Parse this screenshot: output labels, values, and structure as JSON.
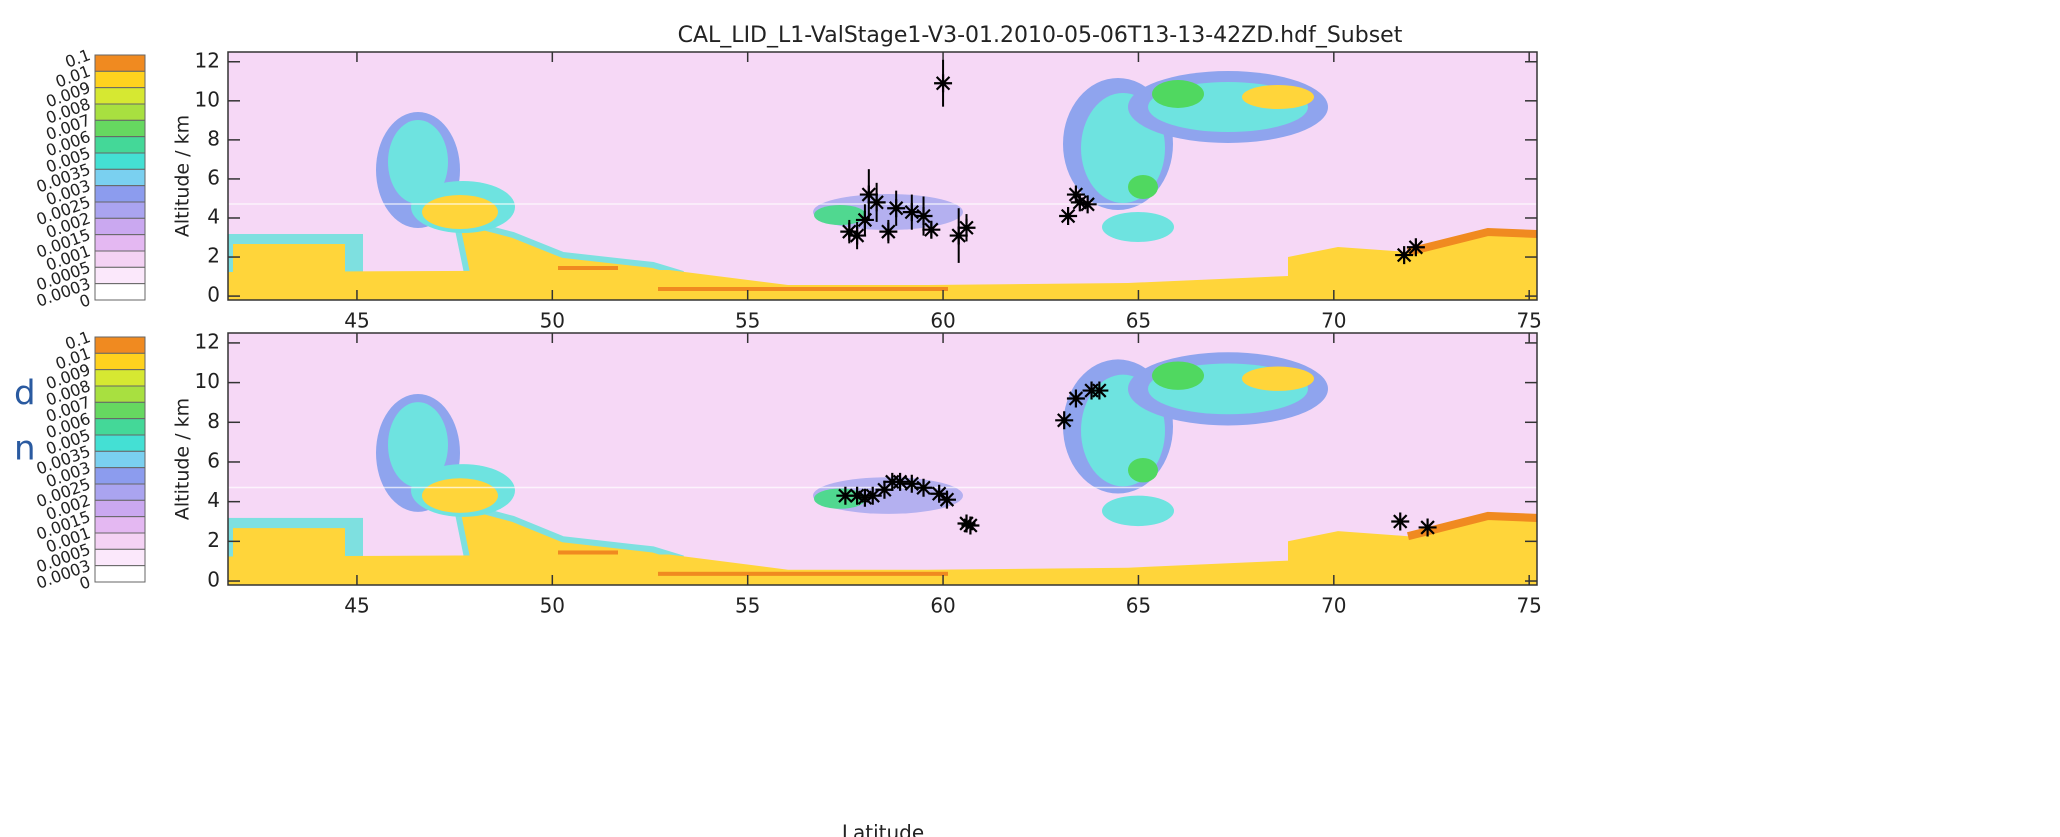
{
  "cut_text": [
    "d",
    "n"
  ],
  "chart_data": [
    {
      "type": "scatter",
      "title": "CAL_LID_L1-ValStage1-V3-01.2010-05-06T13-13-42ZD.hdf_Subset",
      "ylabel": "Altitude / km",
      "x": [
        57.6,
        57.8,
        58.0,
        58.1,
        58.3,
        58.6,
        58.8,
        59.2,
        59.5,
        59.7,
        60.0,
        60.4,
        60.6,
        63.2,
        63.4,
        63.5,
        63.7,
        71.8,
        72.1
      ],
      "values": [
        3.3,
        3.1,
        3.9,
        5.2,
        4.8,
        3.3,
        4.5,
        4.3,
        4.1,
        3.4,
        10.9,
        3.1,
        3.5,
        4.1,
        5.2,
        4.8,
        4.7,
        2.1,
        2.5
      ],
      "errors": [
        0.6,
        0.7,
        0.8,
        1.3,
        1.0,
        0.6,
        0.9,
        0.9,
        1.0,
        0.4,
        1.2,
        1.4,
        0.7,
        0.2,
        0.3,
        0.3,
        0.2,
        0.2,
        0.2
      ],
      "color": "#000000",
      "xlim": [
        41.7,
        75.2
      ],
      "ylim": [
        -0.2,
        12.5
      ],
      "xticks": [
        45,
        50,
        55,
        60,
        65,
        70,
        75
      ],
      "yticks": [
        0,
        2,
        4,
        6,
        8,
        10,
        12
      ],
      "colorbar": {
        "levels": [
          0.1,
          0.01,
          0.009,
          0.008,
          0.007,
          0.006,
          0.005,
          0.0035,
          0.003,
          0.0025,
          0.002,
          0.0015,
          0.001,
          0.0005,
          0.0003,
          0
        ],
        "colors": [
          "#f08a20",
          "#ffd21e",
          "#d6e832",
          "#a8e040",
          "#66d860",
          "#44d898",
          "#44e0d4",
          "#7ad0f0",
          "#8c9cee",
          "#aaa4f0",
          "#caa8f0",
          "#e4b8f2",
          "#f4d2f4",
          "#fbe8fb",
          "#ffffff"
        ]
      }
    },
    {
      "type": "scatter",
      "ylabel": "Altitude / km",
      "xlabel": "Latitude",
      "x": [
        57.5,
        57.8,
        58.0,
        58.2,
        58.5,
        58.7,
        58.9,
        59.2,
        59.5,
        59.9,
        60.1,
        60.6,
        60.7,
        63.1,
        63.4,
        63.8,
        64.0,
        71.7,
        72.4
      ],
      "values": [
        4.3,
        4.3,
        4.2,
        4.3,
        4.6,
        5.0,
        5.0,
        4.9,
        4.7,
        4.4,
        4.1,
        2.9,
        2.8,
        8.1,
        9.2,
        9.6,
        9.6,
        3.0,
        2.7
      ],
      "color": "#000000",
      "xlim": [
        41.7,
        75.2
      ],
      "ylim": [
        -0.2,
        12.5
      ],
      "xticks": [
        45,
        50,
        55,
        60,
        65,
        70,
        75
      ],
      "yticks": [
        0,
        2,
        4,
        6,
        8,
        10,
        12
      ],
      "colorbar": {
        "levels": [
          0.1,
          0.01,
          0.009,
          0.008,
          0.007,
          0.006,
          0.005,
          0.0035,
          0.003,
          0.0025,
          0.002,
          0.0015,
          0.001,
          0.0005,
          0.0003,
          0
        ],
        "colors": [
          "#f08a20",
          "#ffd21e",
          "#d6e832",
          "#a8e040",
          "#66d860",
          "#44d898",
          "#44e0d4",
          "#7ad0f0",
          "#8c9cee",
          "#aaa4f0",
          "#caa8f0",
          "#e4b8f2",
          "#f4d2f4",
          "#fbe8fb",
          "#ffffff"
        ]
      }
    }
  ]
}
